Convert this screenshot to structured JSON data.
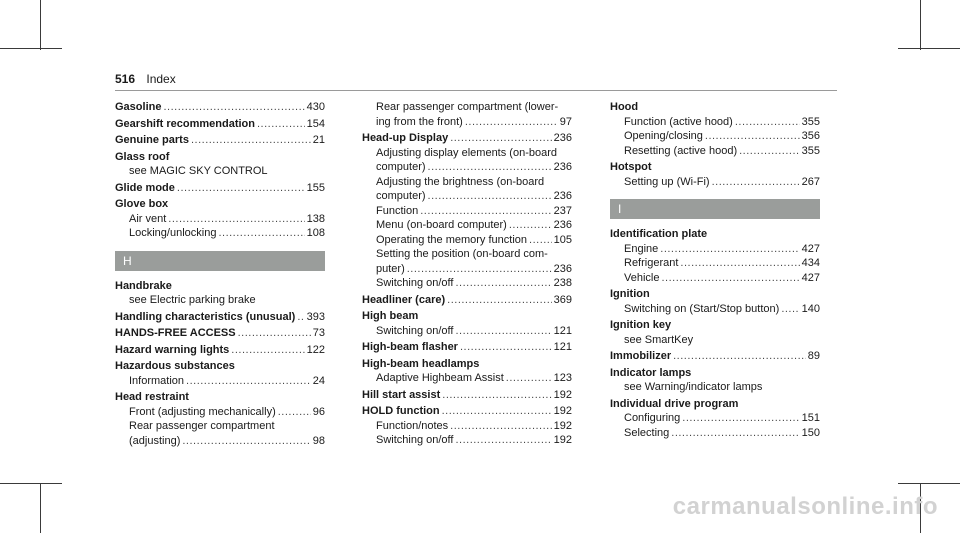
{
  "header": {
    "page_number": "516",
    "section": "Index"
  },
  "watermark": "carmanualsonline.info",
  "columns": [
    {
      "blocks": [
        {
          "type": "entry",
          "lines": [
            {
              "kind": "head",
              "text": "Gasoline",
              "page": "430"
            }
          ]
        },
        {
          "type": "entry",
          "lines": [
            {
              "kind": "head",
              "text": "Gearshift recommendation",
              "page": "154"
            }
          ]
        },
        {
          "type": "entry",
          "lines": [
            {
              "kind": "head",
              "text": "Genuine parts",
              "page": "21"
            }
          ]
        },
        {
          "type": "entry",
          "lines": [
            {
              "kind": "head",
              "text": "Glass roof"
            },
            {
              "kind": "see",
              "text": "see MAGIC SKY CONTROL"
            }
          ]
        },
        {
          "type": "entry",
          "lines": [
            {
              "kind": "head",
              "text": "Glide mode",
              "page": "155"
            }
          ]
        },
        {
          "type": "entry",
          "lines": [
            {
              "kind": "head",
              "text": "Glove box"
            },
            {
              "kind": "sub",
              "text": "Air vent",
              "page": "138"
            },
            {
              "kind": "sub",
              "text": "Locking/unlocking",
              "page": "108"
            }
          ]
        },
        {
          "type": "letter",
          "text": "H"
        },
        {
          "type": "entry",
          "lines": [
            {
              "kind": "head",
              "text": "Handbrake"
            },
            {
              "kind": "see",
              "text": "see Electric parking brake"
            }
          ]
        },
        {
          "type": "entry",
          "lines": [
            {
              "kind": "head",
              "text": "Handling characteristics (unusual)",
              "page": "393"
            }
          ]
        },
        {
          "type": "entry",
          "lines": [
            {
              "kind": "head",
              "text": "HANDS-FREE ACCESS",
              "page": "73"
            }
          ]
        },
        {
          "type": "entry",
          "lines": [
            {
              "kind": "head",
              "text": "Hazard warning lights",
              "page": "122"
            }
          ]
        },
        {
          "type": "entry",
          "lines": [
            {
              "kind": "head",
              "text": "Hazardous substances"
            },
            {
              "kind": "sub",
              "text": "Information",
              "page": "24"
            }
          ]
        },
        {
          "type": "entry",
          "lines": [
            {
              "kind": "head",
              "text": "Head restraint"
            },
            {
              "kind": "sub",
              "text": "Front (adjusting mechanically)",
              "page": "96"
            },
            {
              "kind": "cont",
              "text": "Rear passenger compartment"
            },
            {
              "kind": "sub",
              "text": "(adjusting)",
              "page": "98"
            }
          ]
        }
      ]
    },
    {
      "blocks": [
        {
          "type": "entry",
          "lines": [
            {
              "kind": "cont",
              "text": "Rear passenger compartment (lower-"
            },
            {
              "kind": "sub",
              "text": "ing from the front)",
              "page": "97"
            }
          ]
        },
        {
          "type": "entry",
          "lines": [
            {
              "kind": "head",
              "text": "Head-up Display",
              "page": "236"
            },
            {
              "kind": "cont",
              "text": "Adjusting display elements (on-board"
            },
            {
              "kind": "sub",
              "text": "computer)",
              "page": "236"
            },
            {
              "kind": "cont",
              "text": "Adjusting the brightness (on-board"
            },
            {
              "kind": "sub",
              "text": "computer)",
              "page": "236"
            },
            {
              "kind": "sub",
              "text": "Function",
              "page": "237"
            },
            {
              "kind": "sub",
              "text": "Menu (on-board computer)",
              "page": "236"
            },
            {
              "kind": "sub",
              "text": "Operating the memory function",
              "page": "105"
            },
            {
              "kind": "cont",
              "text": "Setting the position (on-board com-"
            },
            {
              "kind": "sub",
              "text": "puter)",
              "page": "236"
            },
            {
              "kind": "sub",
              "text": "Switching on/off",
              "page": "238"
            }
          ]
        },
        {
          "type": "entry",
          "lines": [
            {
              "kind": "head",
              "text": "Headliner (care)",
              "page": "369"
            }
          ]
        },
        {
          "type": "entry",
          "lines": [
            {
              "kind": "head",
              "text": "High beam"
            },
            {
              "kind": "sub",
              "text": "Switching on/off",
              "page": "121"
            }
          ]
        },
        {
          "type": "entry",
          "lines": [
            {
              "kind": "head",
              "text": "High-beam flasher",
              "page": "121"
            }
          ]
        },
        {
          "type": "entry",
          "lines": [
            {
              "kind": "head",
              "text": "High-beam headlamps"
            },
            {
              "kind": "sub",
              "text": "Adaptive Highbeam Assist",
              "page": "123"
            }
          ]
        },
        {
          "type": "entry",
          "lines": [
            {
              "kind": "head",
              "text": "Hill start assist",
              "page": "192"
            }
          ]
        },
        {
          "type": "entry",
          "lines": [
            {
              "kind": "head",
              "text": "HOLD function",
              "page": "192"
            },
            {
              "kind": "sub",
              "text": "Function/notes",
              "page": "192"
            },
            {
              "kind": "sub",
              "text": "Switching on/off",
              "page": "192"
            }
          ]
        }
      ]
    },
    {
      "blocks": [
        {
          "type": "entry",
          "lines": [
            {
              "kind": "head",
              "text": "Hood"
            },
            {
              "kind": "sub",
              "text": "Function (active hood)",
              "page": "355"
            },
            {
              "kind": "sub",
              "text": "Opening/closing",
              "page": "356"
            },
            {
              "kind": "sub",
              "text": "Resetting (active hood)",
              "page": "355"
            }
          ]
        },
        {
          "type": "entry",
          "lines": [
            {
              "kind": "head",
              "text": "Hotspot"
            },
            {
              "kind": "sub",
              "text": "Setting up (Wi-Fi)",
              "page": "267"
            }
          ]
        },
        {
          "type": "letter",
          "text": "I"
        },
        {
          "type": "entry",
          "lines": [
            {
              "kind": "head",
              "text": "Identification plate"
            },
            {
              "kind": "sub",
              "text": "Engine",
              "page": "427"
            },
            {
              "kind": "sub",
              "text": "Refrigerant",
              "page": "434"
            },
            {
              "kind": "sub",
              "text": "Vehicle",
              "page": "427"
            }
          ]
        },
        {
          "type": "entry",
          "lines": [
            {
              "kind": "head",
              "text": "Ignition"
            },
            {
              "kind": "sub",
              "text": "Switching on (Start/Stop button)",
              "page": "140"
            }
          ]
        },
        {
          "type": "entry",
          "lines": [
            {
              "kind": "head",
              "text": "Ignition key"
            },
            {
              "kind": "see",
              "text": "see SmartKey"
            }
          ]
        },
        {
          "type": "entry",
          "lines": [
            {
              "kind": "head",
              "text": "Immobilizer",
              "page": "89"
            }
          ]
        },
        {
          "type": "entry",
          "lines": [
            {
              "kind": "head",
              "text": "Indicator lamps"
            },
            {
              "kind": "see",
              "text": "see Warning/indicator lamps"
            }
          ]
        },
        {
          "type": "entry",
          "lines": [
            {
              "kind": "head",
              "text": "Individual drive program"
            },
            {
              "kind": "sub",
              "text": "Configuring",
              "page": "151"
            },
            {
              "kind": "sub",
              "text": "Selecting",
              "page": "150"
            }
          ]
        }
      ]
    }
  ]
}
